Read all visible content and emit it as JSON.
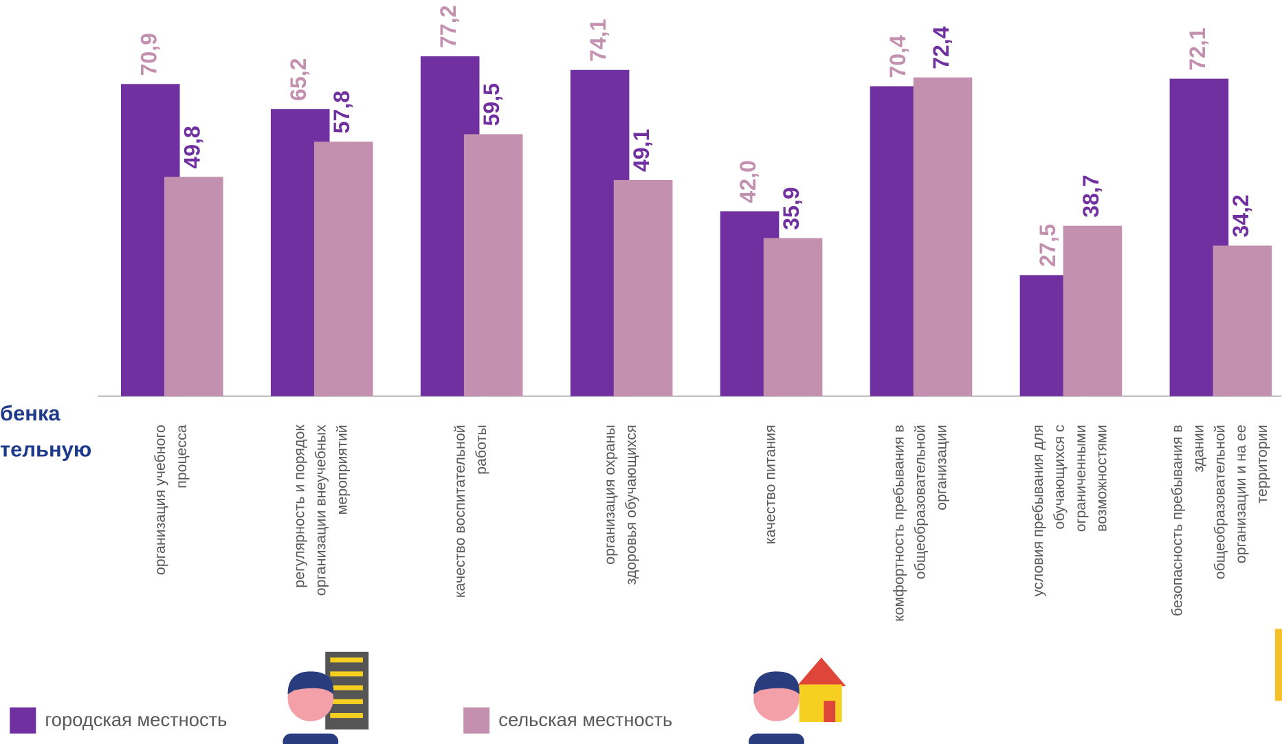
{
  "chart_data": {
    "type": "bar",
    "categories": [
      [
        "организация учебного",
        "процесса"
      ],
      [
        "регулярность и порядок",
        "организации внеучебных",
        "мероприятий"
      ],
      [
        "качество воспитательной",
        "работы"
      ],
      [
        "организация охраны",
        "здоровья обучающихся"
      ],
      [
        "качество питания"
      ],
      [
        "комфортность пребывания в",
        "общеобразовательной",
        "организации"
      ],
      [
        "условия пребывания для",
        "обучающихся с",
        "ограниченными",
        "возможностями"
      ],
      [
        "безопасность пребывания в",
        "здании",
        "общеобразовательной",
        "организации и на ее",
        "территории"
      ]
    ],
    "series": [
      {
        "name": "городская местность",
        "color": "#7030a0",
        "values": [
          70.9,
          65.2,
          77.2,
          74.1,
          42.0,
          70.4,
          27.5,
          72.1
        ],
        "value_labels": [
          "70,9",
          "65,2",
          "77,2",
          "74,1",
          "42,0",
          "70,4",
          "27,5",
          "72,1"
        ]
      },
      {
        "name": "сельская местность",
        "color": "#c490b0",
        "values": [
          49.8,
          57.8,
          59.5,
          49.1,
          35.9,
          72.4,
          38.7,
          34.2
        ],
        "value_labels": [
          "49,8",
          "57,8",
          "59,5",
          "49,1",
          "35,9",
          "72,4",
          "38,7",
          "34,2"
        ]
      }
    ],
    "legend": "bottom",
    "side_text": [
      "бенка",
      "тельную"
    ]
  }
}
